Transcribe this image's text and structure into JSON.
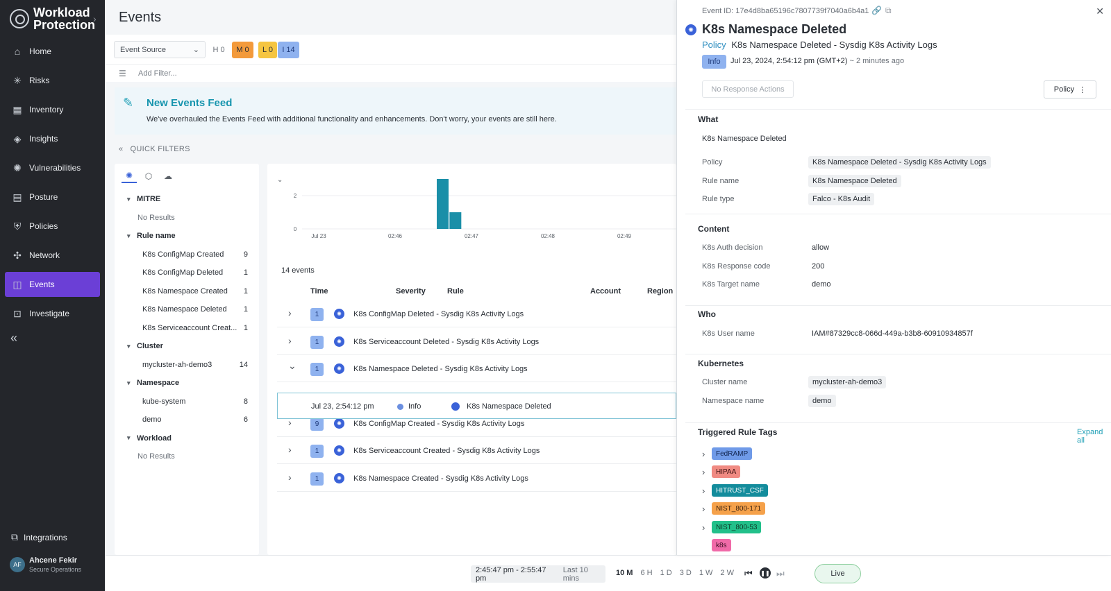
{
  "brand": {
    "line1": "Workload",
    "line2": "Protection"
  },
  "nav": [
    {
      "label": "Home",
      "icon": "home-icon",
      "glyph": "⌂"
    },
    {
      "label": "Risks",
      "icon": "risks-icon",
      "glyph": "✳"
    },
    {
      "label": "Inventory",
      "icon": "inventory-icon",
      "glyph": "▦"
    },
    {
      "label": "Insights",
      "icon": "insights-icon",
      "glyph": "◈"
    },
    {
      "label": "Vulnerabilities",
      "icon": "bug-icon",
      "glyph": "✺"
    },
    {
      "label": "Posture",
      "icon": "posture-icon",
      "glyph": "▤"
    },
    {
      "label": "Policies",
      "icon": "shield-icon",
      "glyph": "⛨"
    },
    {
      "label": "Network",
      "icon": "network-icon",
      "glyph": "✣"
    },
    {
      "label": "Events",
      "icon": "events-icon",
      "glyph": "◫"
    },
    {
      "label": "Investigate",
      "icon": "investigate-icon",
      "glyph": "⊡"
    }
  ],
  "integrations": "Integrations",
  "user": {
    "initials": "AF",
    "name": "Ahcene Fekir",
    "role": "Secure Operations"
  },
  "page_title": "Events",
  "event_source": "Event Source",
  "severity": [
    {
      "label": "H 0",
      "bg": "transparent",
      "fg": "#6a7078"
    },
    {
      "label": "M 0",
      "bg": "#f39a3b",
      "fg": "#2a2f36"
    },
    {
      "label": "L 0",
      "bg": "#f5c542",
      "fg": "#2a2f36"
    },
    {
      "label": "I 14",
      "bg": "#8fb2ef",
      "fg": "#1e3a7a"
    }
  ],
  "add_filter": "Add Filter...",
  "banner": {
    "title": "New Events Feed",
    "text": "We've overhauled the Events Feed with additional functionality and enhancements. Don't worry, your events are still here."
  },
  "quick_filters": "QUICK FILTERS",
  "qf_groups": [
    {
      "name": "MITRE",
      "items": [],
      "empty": "No Results"
    },
    {
      "name": "Rule name",
      "items": [
        {
          "label": "K8s ConfigMap Created",
          "count": "9"
        },
        {
          "label": "K8s ConfigMap Deleted",
          "count": "1"
        },
        {
          "label": "K8s Namespace Created",
          "count": "1"
        },
        {
          "label": "K8s Namespace Deleted",
          "count": "1"
        },
        {
          "label": "K8s Serviceaccount Creat...",
          "count": "1"
        }
      ]
    },
    {
      "name": "Cluster",
      "items": [
        {
          "label": "mycluster-ah-demo3",
          "count": "14"
        }
      ]
    },
    {
      "name": "Namespace",
      "items": [
        {
          "label": "kube-system",
          "count": "8"
        },
        {
          "label": "demo",
          "count": "6"
        }
      ]
    },
    {
      "name": "Workload",
      "items": [],
      "empty": "No Results"
    }
  ],
  "chart_data": {
    "type": "bar",
    "x_ticks": [
      "Jul 23",
      "02:46",
      "02:47",
      "02:48",
      "02:49"
    ],
    "y_ticks": [
      0,
      2
    ],
    "bars": [
      {
        "x": "02:46:30",
        "value": 3
      },
      {
        "x": "02:46:40",
        "value": 1
      }
    ],
    "ylim": [
      0,
      3
    ],
    "bar_color": "#1a8fa8"
  },
  "events_count": "14 events",
  "columns": [
    "Time",
    "Severity",
    "Rule",
    "Account",
    "Region"
  ],
  "rows": [
    {
      "count": "1",
      "rule": "K8s ConfigMap Deleted - Sysdig K8s Activity Logs",
      "expanded": false
    },
    {
      "count": "1",
      "rule": "K8s Serviceaccount Deleted - Sysdig K8s Activity Logs",
      "expanded": false
    },
    {
      "count": "1",
      "rule": "K8s Namespace Deleted - Sysdig K8s Activity Logs",
      "expanded": true
    },
    {
      "count": "9",
      "rule": "K8s ConfigMap Created - Sysdig K8s Activity Logs",
      "expanded": false
    },
    {
      "count": "1",
      "rule": "K8s Serviceaccount Created - Sysdig K8s Activity Logs",
      "expanded": false
    },
    {
      "count": "1",
      "rule": "K8s Namespace Created - Sysdig K8s Activity Logs",
      "expanded": false
    }
  ],
  "subrow": {
    "time": "Jul 23, 2:54:12 pm",
    "severity": "Info",
    "rule": "K8s Namespace Deleted"
  },
  "timebar": {
    "range": "2:45:47 pm - 2:55:47 pm",
    "last": "Last 10 mins",
    "options": [
      "10 M",
      "6 H",
      "1 D",
      "3 D",
      "1 W",
      "2 W"
    ],
    "live": "Live"
  },
  "detail": {
    "event_id": "Event ID: 17e4d8ba65196c7807739f7040a6b4a1",
    "title": "K8s Namespace Deleted",
    "policy_label": "Policy",
    "policy": "K8s Namespace Deleted - Sysdig K8s Activity Logs",
    "severity": "Info",
    "date": "Jul 23, 2024, 2:54:12 pm (GMT+2)",
    "ago": "~ 2 minutes ago",
    "no_response": "No Response Actions",
    "policy_btn": "Policy",
    "what": {
      "heading": "What",
      "value": "K8s Namespace Deleted",
      "fields": [
        {
          "k": "Policy",
          "v": "K8s Namespace Deleted - Sysdig K8s Activity Logs"
        },
        {
          "k": "Rule name",
          "v": "K8s Namespace Deleted"
        },
        {
          "k": "Rule type",
          "v": "Falco - K8s Audit"
        }
      ]
    },
    "content": {
      "heading": "Content",
      "fields": [
        {
          "k": "K8s Auth decision",
          "v": "allow"
        },
        {
          "k": "K8s Response code",
          "v": "200"
        },
        {
          "k": "K8s Target name",
          "v": "demo"
        }
      ]
    },
    "who": {
      "heading": "Who",
      "fields": [
        {
          "k": "K8s User name",
          "v": "IAM#87329cc8-066d-449a-b3b8-60910934857f"
        }
      ]
    },
    "kubernetes": {
      "heading": "Kubernetes",
      "fields": [
        {
          "k": "Cluster name",
          "v": "mycluster-ah-demo3"
        },
        {
          "k": "Namespace name",
          "v": "demo"
        }
      ]
    },
    "tags_heading": "Triggered Rule Tags",
    "expand_all": "Expand all",
    "tags": [
      {
        "label": "FedRAMP",
        "bg": "#6f9ae8",
        "fg": "#12254f",
        "chev": true
      },
      {
        "label": "HIPAA",
        "bg": "#f08a82",
        "fg": "#3a1010",
        "chev": true
      },
      {
        "label": "HITRUST_CSF",
        "bg": "#138c9c",
        "fg": "#ffffff",
        "chev": true
      },
      {
        "label": "NIST_800-171",
        "bg": "#f5a14a",
        "fg": "#3a2210",
        "chev": true
      },
      {
        "label": "NIST_800-53",
        "bg": "#22c08a",
        "fg": "#0f3a28",
        "chev": true
      },
      {
        "label": "k8s",
        "bg": "#f06aa8",
        "fg": "#3a1024",
        "chev": false
      }
    ]
  }
}
